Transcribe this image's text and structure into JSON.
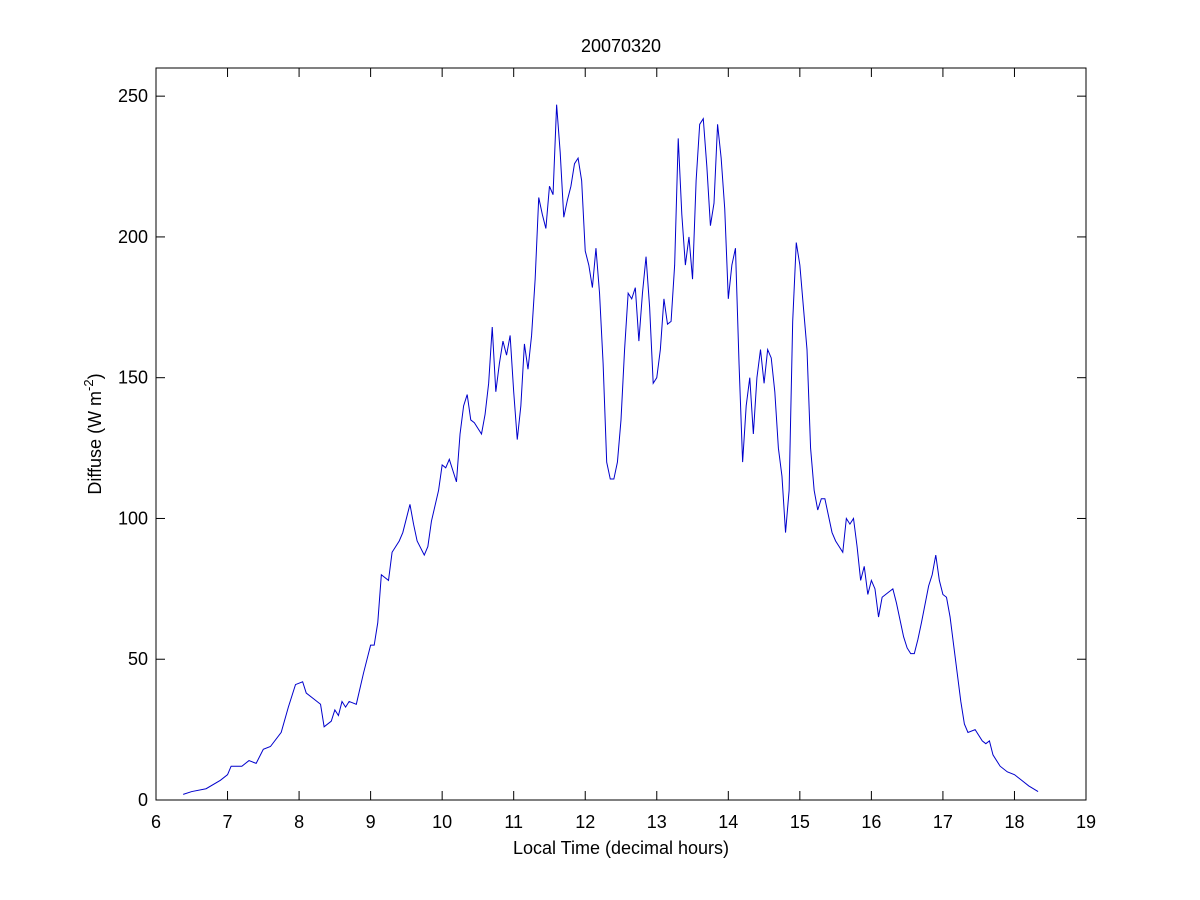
{
  "chart_data": {
    "type": "line",
    "title": "20070320",
    "x_label": "Local Time (decimal hours)",
    "y_label": [
      "Diffuse (W m",
      "-2",
      ")"
    ],
    "x": [
      6.38,
      6.5,
      6.7,
      6.9,
      7.0,
      7.05,
      7.2,
      7.3,
      7.4,
      7.5,
      7.6,
      7.75,
      7.85,
      7.95,
      8.05,
      8.1,
      8.2,
      8.3,
      8.35,
      8.45,
      8.5,
      8.55,
      8.6,
      8.65,
      8.7,
      8.8,
      8.9,
      9.0,
      9.05,
      9.1,
      9.15,
      9.25,
      9.3,
      9.4,
      9.45,
      9.55,
      9.6,
      9.65,
      9.75,
      9.8,
      9.85,
      9.95,
      10.0,
      10.05,
      10.1,
      10.2,
      10.25,
      10.3,
      10.35,
      10.4,
      10.45,
      10.5,
      10.55,
      10.6,
      10.65,
      10.7,
      10.75,
      10.8,
      10.85,
      10.9,
      10.95,
      11.0,
      11.05,
      11.1,
      11.15,
      11.2,
      11.25,
      11.3,
      11.35,
      11.4,
      11.45,
      11.5,
      11.55,
      11.6,
      11.65,
      11.7,
      11.75,
      11.8,
      11.85,
      11.9,
      11.95,
      12.0,
      12.05,
      12.1,
      12.15,
      12.2,
      12.25,
      12.3,
      12.35,
      12.4,
      12.45,
      12.5,
      12.55,
      12.6,
      12.65,
      12.7,
      12.75,
      12.8,
      12.85,
      12.9,
      12.95,
      13.0,
      13.05,
      13.1,
      13.15,
      13.2,
      13.25,
      13.3,
      13.35,
      13.4,
      13.45,
      13.5,
      13.55,
      13.6,
      13.65,
      13.7,
      13.75,
      13.8,
      13.85,
      13.9,
      13.95,
      14.0,
      14.05,
      14.1,
      14.15,
      14.2,
      14.25,
      14.3,
      14.35,
      14.4,
      14.45,
      14.5,
      14.55,
      14.6,
      14.65,
      14.7,
      14.75,
      14.8,
      14.85,
      14.9,
      14.95,
      15.0,
      15.05,
      15.1,
      15.15,
      15.2,
      15.25,
      15.3,
      15.35,
      15.45,
      15.5,
      15.6,
      15.65,
      15.7,
      15.75,
      15.8,
      15.85,
      15.9,
      15.95,
      16.0,
      16.05,
      16.1,
      16.15,
      16.25,
      16.3,
      16.35,
      16.45,
      16.5,
      16.55,
      16.6,
      16.65,
      16.7,
      16.8,
      16.85,
      16.9,
      16.95,
      17.0,
      17.05,
      17.1,
      17.15,
      17.2,
      17.25,
      17.3,
      17.35,
      17.45,
      17.55,
      17.6,
      17.65,
      17.7,
      17.8,
      17.9,
      18.0,
      18.1,
      18.2,
      18.33
    ],
    "series": [
      {
        "color": "#0000cc",
        "values": [
          2,
          3,
          4,
          7,
          9,
          12,
          12,
          14,
          13,
          18,
          19,
          24,
          33,
          41,
          42,
          38,
          36,
          34,
          26,
          28,
          32,
          30,
          35,
          33,
          35,
          34,
          45,
          55,
          55,
          63,
          80,
          78,
          88,
          92,
          95,
          105,
          98,
          92,
          87,
          90,
          99,
          110,
          119,
          118,
          121,
          113,
          130,
          140,
          144,
          135,
          134,
          132,
          130,
          137,
          148,
          168,
          145,
          155,
          163,
          158,
          165,
          145,
          128,
          140,
          162,
          153,
          165,
          185,
          214,
          208,
          203,
          218,
          215,
          247,
          230,
          207,
          213,
          218,
          226,
          228,
          220,
          195,
          190,
          182,
          196,
          180,
          155,
          120,
          114,
          114,
          120,
          135,
          160,
          180,
          178,
          182,
          163,
          180,
          193,
          175,
          148,
          150,
          160,
          178,
          169,
          170,
          190,
          235,
          208,
          190,
          200,
          185,
          220,
          240,
          242,
          225,
          204,
          212,
          240,
          228,
          210,
          178,
          190,
          196,
          155,
          120,
          140,
          150,
          130,
          150,
          160,
          148,
          160,
          157,
          145,
          125,
          115,
          95,
          110,
          170,
          198,
          190,
          175,
          160,
          125,
          110,
          103,
          107,
          107,
          95,
          92,
          88,
          100,
          98,
          100,
          90,
          78,
          83,
          73,
          78,
          75,
          65,
          72,
          74,
          75,
          70,
          58,
          54,
          52,
          52,
          57,
          63,
          76,
          80,
          87,
          78,
          73,
          72,
          65,
          55,
          45,
          35,
          27,
          24,
          25,
          21,
          20,
          21,
          16,
          12,
          10,
          9,
          7,
          5,
          3
        ]
      }
    ],
    "xlim": [
      6,
      19
    ],
    "xticks": [
      6,
      7,
      8,
      9,
      10,
      11,
      12,
      13,
      14,
      15,
      16,
      17,
      18,
      19
    ],
    "ylim": [
      0,
      260
    ],
    "yticks": [
      0,
      50,
      100,
      150,
      200,
      250
    ]
  }
}
